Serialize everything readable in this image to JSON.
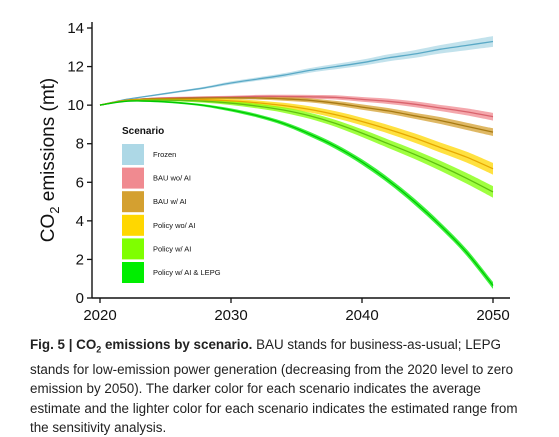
{
  "chart_data": {
    "type": "line",
    "title": "",
    "xlabel": "",
    "ylabel_main": "CO",
    "ylabel_sub": "2",
    "ylabel_rest": " emissions (mt)",
    "xlim": [
      2020,
      2050
    ],
    "ylim": [
      0,
      14
    ],
    "xticks": [
      2020,
      2030,
      2040,
      2050
    ],
    "yticks": [
      0,
      2,
      4,
      6,
      8,
      10,
      12,
      14
    ],
    "grid": false,
    "legend": {
      "title": "Scenario",
      "placement": "center-left"
    },
    "x": [
      2020,
      2022,
      2024,
      2026,
      2028,
      2030,
      2032,
      2034,
      2036,
      2038,
      2040,
      2042,
      2044,
      2046,
      2048,
      2050
    ],
    "series": [
      {
        "name": "Frozen",
        "color": "#5aa9c6",
        "band_color": "#add8e6",
        "values": [
          10.0,
          10.3,
          10.5,
          10.7,
          10.9,
          11.15,
          11.35,
          11.55,
          11.8,
          12.0,
          12.2,
          12.45,
          12.65,
          12.9,
          13.1,
          13.3
        ],
        "band": [
          0,
          0.02,
          0.04,
          0.05,
          0.06,
          0.08,
          0.09,
          0.1,
          0.12,
          0.14,
          0.16,
          0.18,
          0.2,
          0.22,
          0.25,
          0.28
        ]
      },
      {
        "name": "BAU wo/ AI",
        "color": "#d9636d",
        "band_color": "#f08a90",
        "values": [
          10.0,
          10.25,
          10.35,
          10.38,
          10.4,
          10.42,
          10.45,
          10.45,
          10.43,
          10.4,
          10.3,
          10.2,
          10.05,
          9.85,
          9.65,
          9.4
        ],
        "band": [
          0,
          0.02,
          0.04,
          0.05,
          0.06,
          0.07,
          0.08,
          0.09,
          0.1,
          0.11,
          0.12,
          0.14,
          0.15,
          0.16,
          0.18,
          0.2
        ]
      },
      {
        "name": "BAU w/ AI",
        "color": "#a77a12",
        "band_color": "#d4a030",
        "values": [
          10.0,
          10.25,
          10.33,
          10.35,
          10.37,
          10.38,
          10.37,
          10.33,
          10.25,
          10.1,
          9.9,
          9.7,
          9.45,
          9.2,
          8.9,
          8.6
        ],
        "band": [
          0,
          0.02,
          0.04,
          0.05,
          0.06,
          0.07,
          0.08,
          0.1,
          0.11,
          0.12,
          0.14,
          0.15,
          0.16,
          0.18,
          0.19,
          0.2
        ]
      },
      {
        "name": "Policy wo/ AI",
        "color": "#e6a800",
        "band_color": "#ffd700",
        "values": [
          10.0,
          10.25,
          10.3,
          10.3,
          10.28,
          10.22,
          10.12,
          9.98,
          9.78,
          9.5,
          9.15,
          8.75,
          8.3,
          7.8,
          7.3,
          6.7
        ],
        "band": [
          0,
          0.02,
          0.04,
          0.06,
          0.08,
          0.1,
          0.12,
          0.14,
          0.16,
          0.18,
          0.2,
          0.22,
          0.24,
          0.26,
          0.28,
          0.3
        ]
      },
      {
        "name": "Policy w/ AI",
        "color": "#5fbf10",
        "band_color": "#7fff00",
        "values": [
          10.0,
          10.22,
          10.26,
          10.25,
          10.2,
          10.1,
          9.95,
          9.75,
          9.45,
          9.05,
          8.55,
          8.0,
          7.45,
          6.85,
          6.2,
          5.5
        ],
        "band": [
          0,
          0.02,
          0.04,
          0.06,
          0.08,
          0.1,
          0.12,
          0.14,
          0.16,
          0.18,
          0.2,
          0.22,
          0.24,
          0.26,
          0.28,
          0.3
        ]
      },
      {
        "name": "Policy w/ AI & LEPG",
        "color": "#00c800",
        "band_color": "#00ee00",
        "values": [
          10.0,
          10.2,
          10.2,
          10.12,
          9.98,
          9.75,
          9.45,
          9.05,
          8.5,
          7.85,
          7.05,
          6.1,
          5.0,
          3.75,
          2.35,
          0.65
        ],
        "band": [
          0,
          0.02,
          0.04,
          0.05,
          0.06,
          0.08,
          0.09,
          0.1,
          0.12,
          0.13,
          0.14,
          0.15,
          0.16,
          0.16,
          0.17,
          0.18
        ]
      }
    ]
  },
  "caption": {
    "label": "Fig. 5 | CO",
    "label_sub": "2",
    "label_rest": " emissions by scenario.",
    "text": " BAU stands for business-as-usual; LEPG stands for low-emission power generation (decreasing from the 2020 level to zero emission by 2050). The darker color for each scenario indicates the average estimate and the lighter color for each scenario indicates the estimated range from the sensitivity analysis."
  }
}
